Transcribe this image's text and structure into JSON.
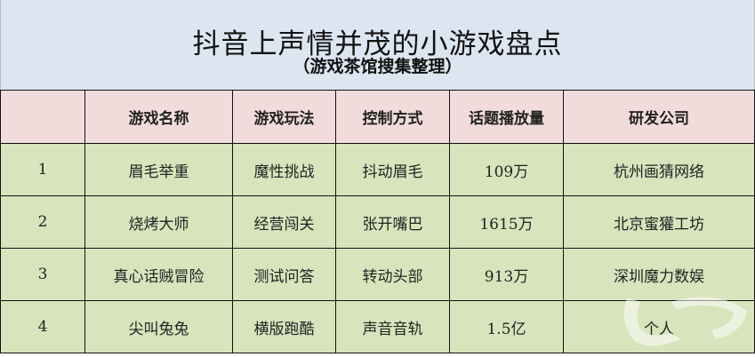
{
  "title": "抖音上声情并茂的小游戏盘点",
  "subtitle": "（游戏茶馆搜集整理）",
  "table": {
    "headers": [
      "",
      "游戏名称",
      "游戏玩法",
      "控制方式",
      "话题播放量",
      "研发公司"
    ],
    "rows": [
      [
        "1",
        "眉毛举重",
        "魔性挑战",
        "抖动眉毛",
        "109万",
        "杭州画猜网络"
      ],
      [
        "2",
        "烧烤大师",
        "经营闯关",
        "张开嘴巴",
        "1615万",
        "北京蜜獾工坊"
      ],
      [
        "3",
        "真心话贼冒险",
        "测试问答",
        "转动头部",
        "913万",
        "深圳魔力数娱"
      ],
      [
        "4",
        "尖叫兔兔",
        "横版跑酷",
        "声音音轨",
        "1.5亿",
        "个人"
      ]
    ]
  },
  "watermark": {
    "text": "游戏茶馆"
  },
  "colors": {
    "title_bg": "#dce6f1",
    "header_bg": "#f2dcdb",
    "row_bg": "#d8e4bc"
  }
}
